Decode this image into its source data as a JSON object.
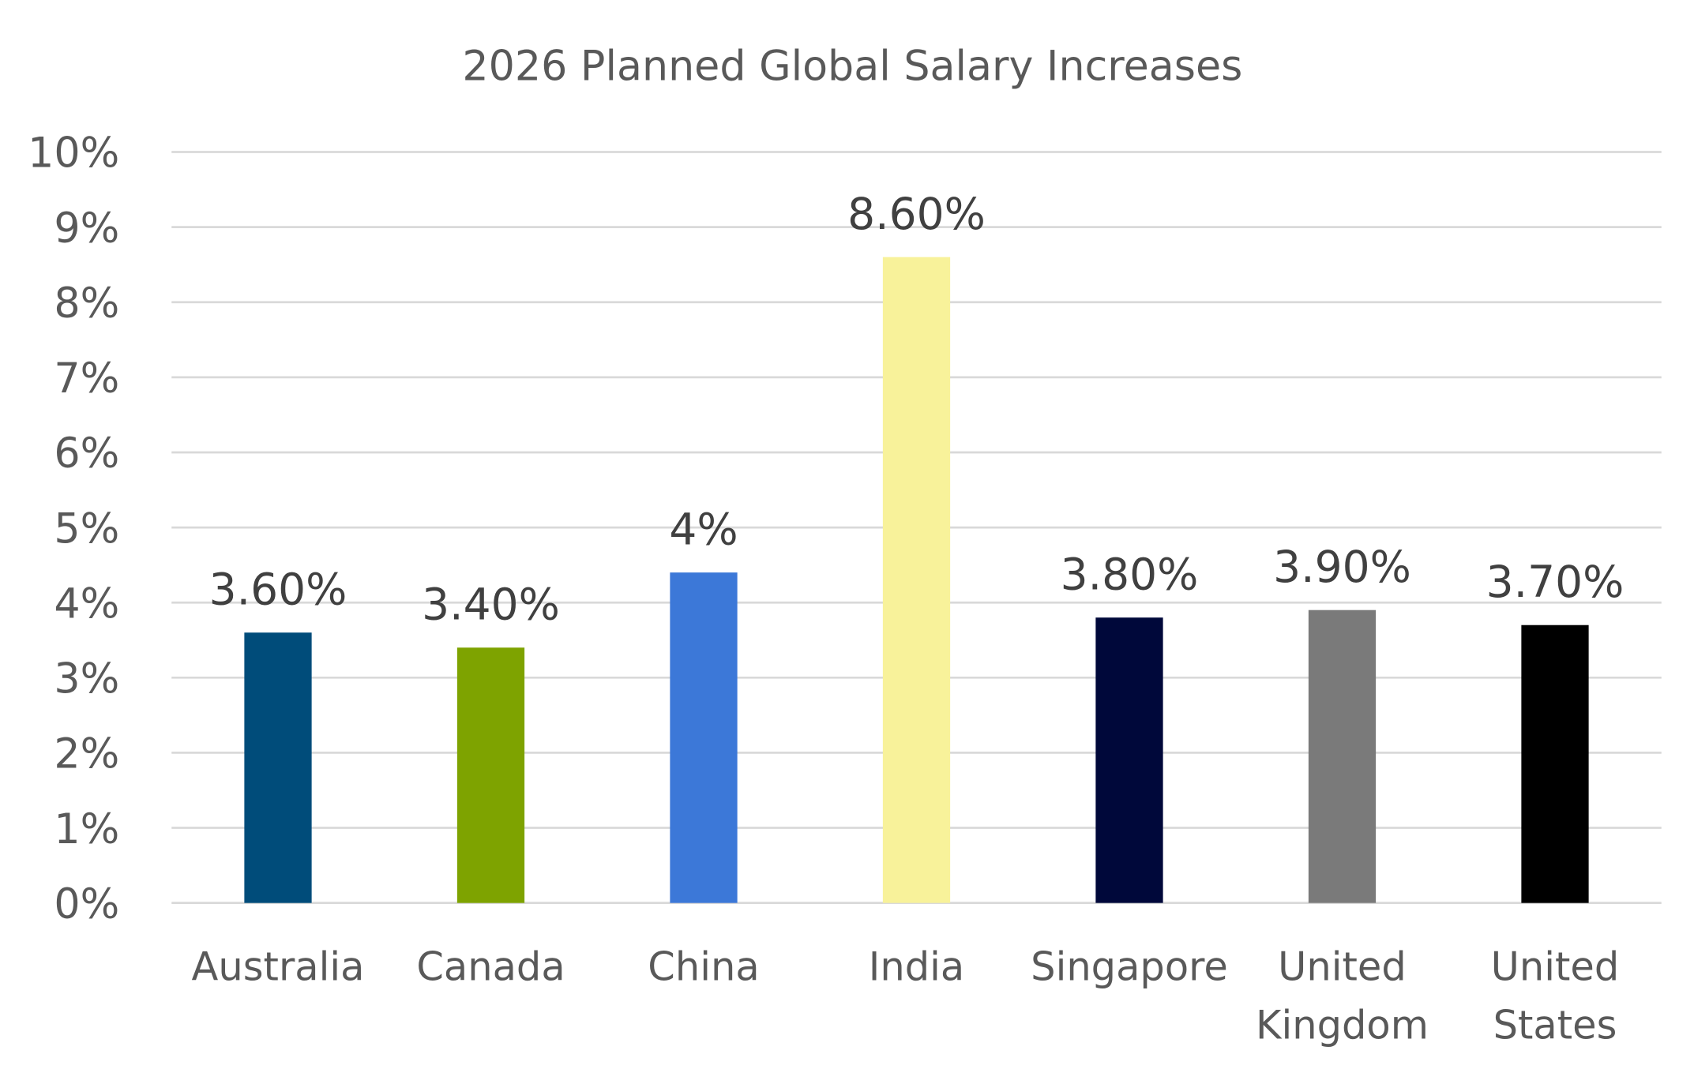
{
  "chart_data": {
    "type": "bar",
    "title": "2026 Planned Global Salary Increases",
    "xlabel": "",
    "ylabel": "",
    "ylim": [
      0,
      10
    ],
    "yticks": [
      "0%",
      "1%",
      "2%",
      "3%",
      "4%",
      "5%",
      "6%",
      "7%",
      "8%",
      "9%",
      "10%"
    ],
    "grid": true,
    "legend": "none",
    "categories": [
      [
        "Australia"
      ],
      [
        "Canada"
      ],
      [
        "China"
      ],
      [
        "India"
      ],
      [
        "Singapore"
      ],
      [
        "United",
        "Kingdom"
      ],
      [
        "United",
        "States"
      ]
    ],
    "values": [
      3.6,
      3.4,
      4.4,
      8.6,
      3.8,
      3.9,
      3.7
    ],
    "data_labels": [
      "3.60%",
      "3.40%",
      "4%",
      "8.60%",
      "3.80%",
      "3.90%",
      "3.70%"
    ],
    "colors": [
      "#004c7a",
      "#7ea300",
      "#3c78d8",
      "#f8f29a",
      "#00083a",
      "#7a7a7a",
      "#000000"
    ],
    "gridline_color": "#d9d9d9"
  }
}
